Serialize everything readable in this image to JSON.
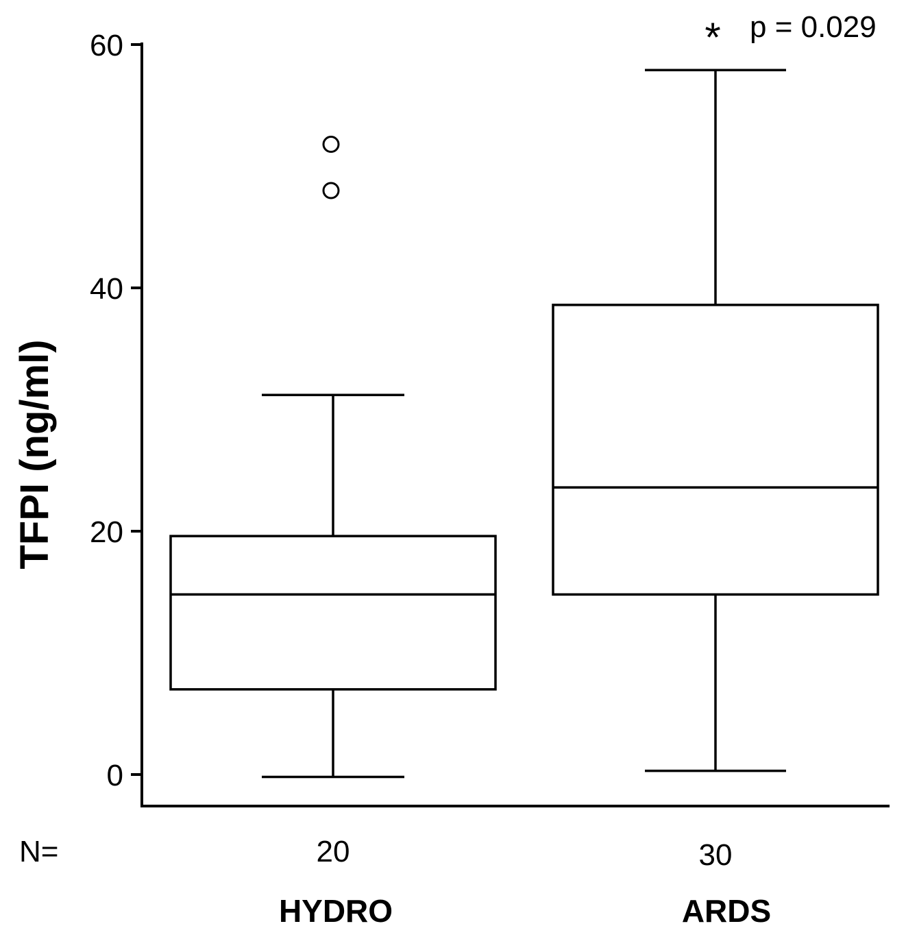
{
  "chart_data": {
    "type": "box",
    "ylabel": "TFPI (ng/ml)",
    "ylim": [
      -2.5,
      60
    ],
    "yticks": [
      "0",
      "20",
      "40",
      "60"
    ],
    "yticks_values": [
      0,
      20,
      40,
      60
    ],
    "grid": false,
    "n_label": "N=",
    "groups": [
      {
        "category": "HYDRO",
        "n": "20",
        "min": -0.2,
        "q1": 7.0,
        "median": 14.8,
        "q3": 19.6,
        "max": 31.2,
        "outliers": [
          51.8,
          48.0
        ]
      },
      {
        "category": "ARDS",
        "n": "30",
        "min": 0.3,
        "q1": 14.8,
        "median": 23.6,
        "q3": 38.6,
        "max": 57.9,
        "outliers": []
      }
    ],
    "annotation": {
      "marker": "*",
      "text": "p = 0.029",
      "group": "ARDS"
    }
  }
}
